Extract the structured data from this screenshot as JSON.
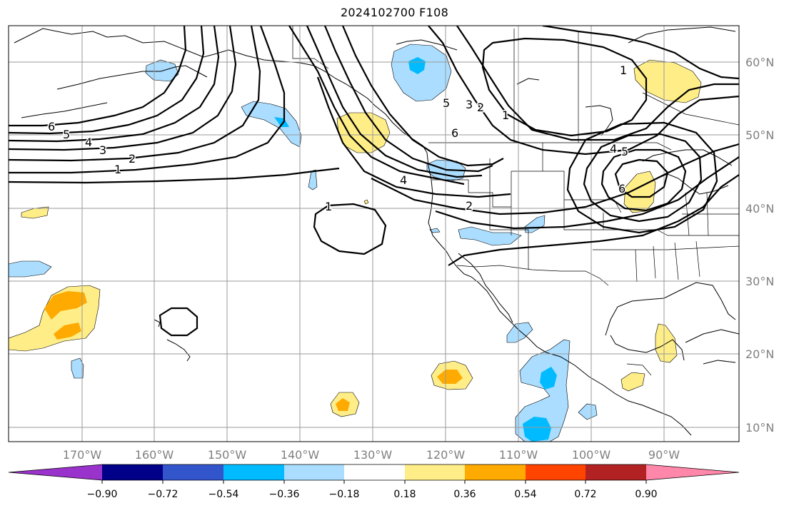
{
  "title": "2024102700 F108",
  "lat_labels": [
    "60°N",
    "50°N",
    "40°N",
    "30°N",
    "20°N",
    "10°N"
  ],
  "lon_labels": [
    "170°W",
    "160°W",
    "150°W",
    "140°W",
    "130°W",
    "120°W",
    "110°W",
    "100°W",
    "90°W"
  ],
  "contour_labels": [
    "6",
    "5",
    "4",
    "3",
    "2",
    "1",
    "1",
    "2",
    "4",
    "5",
    "6",
    "3",
    "2",
    "1",
    "4",
    "5",
    "6",
    "1"
  ],
  "colorbar": {
    "tick_labels": [
      "−0.90",
      "−0.72",
      "−0.54",
      "−0.36",
      "−0.18",
      "0.18",
      "0.36",
      "0.54",
      "0.72",
      "0.90"
    ],
    "colors": [
      "#9933cc",
      "#000088",
      "#3355cc",
      "#00bbff",
      "#aaddff",
      "#ffffff",
      "#ffee88",
      "#ffaa00",
      "#ff4400",
      "#b22222",
      "#ff88aa"
    ]
  }
}
